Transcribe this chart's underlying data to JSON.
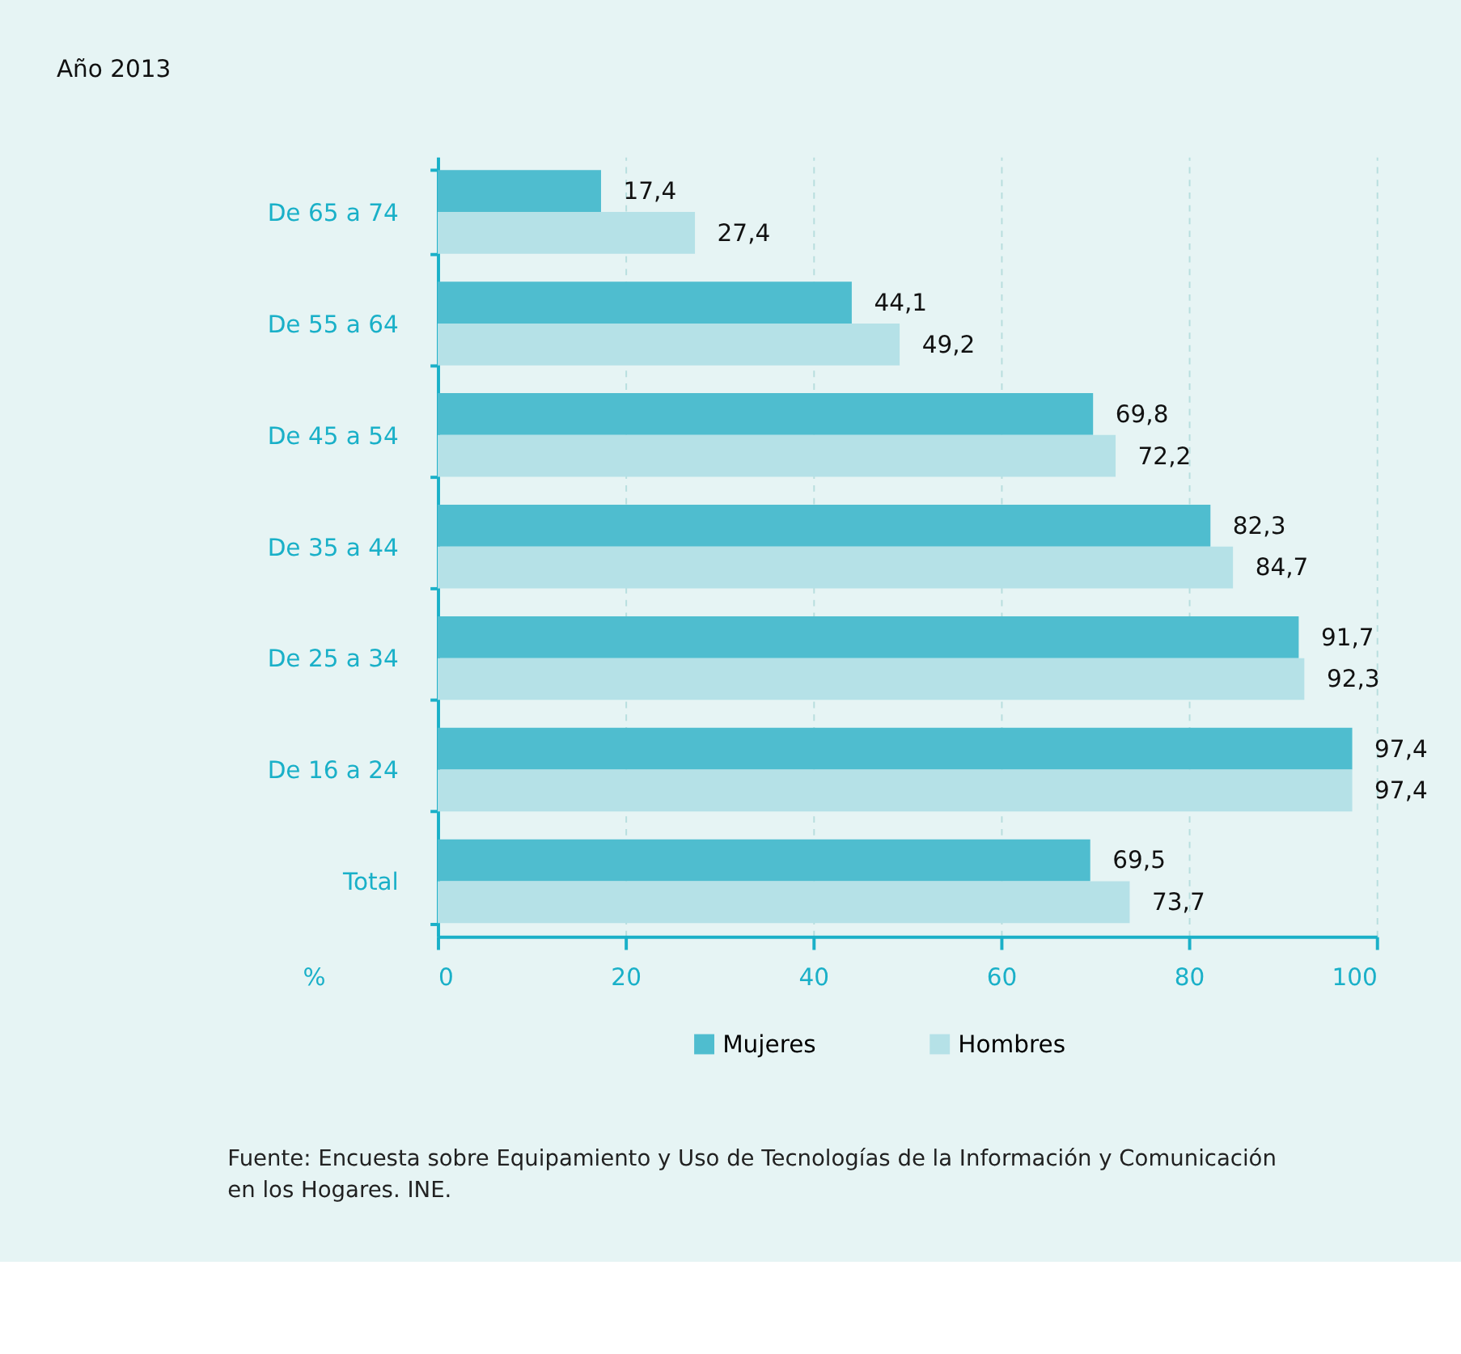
{
  "chart_data": {
    "type": "bar",
    "orientation": "horizontal",
    "title": "Año 2013",
    "xlabel": "%",
    "categories": [
      "De 65 a 74",
      "De 55 a 64",
      "De 45 a 54",
      "De 35 a 44",
      "De 25 a 34",
      "De 16 a 24",
      "Total"
    ],
    "series": [
      {
        "name": "Mujeres",
        "color": "#4fbdcf",
        "values": [
          17.4,
          44.1,
          69.8,
          82.3,
          91.7,
          97.4,
          69.5
        ],
        "value_labels": [
          "17,4",
          "44,1",
          "69,8",
          "82,3",
          "91,7",
          "97,4",
          "69,5"
        ]
      },
      {
        "name": "Hombres",
        "color": "#b5e1e7",
        "values": [
          27.4,
          49.2,
          72.2,
          84.7,
          92.3,
          97.4,
          73.7
        ],
        "value_labels": [
          "27,4",
          "49,2",
          "72,2",
          "84,7",
          "92,3",
          "97,4",
          "73,7"
        ]
      }
    ],
    "xlim": [
      0,
      100
    ],
    "xticks": [
      0,
      20,
      40,
      60,
      80,
      100
    ],
    "grid": "x",
    "legend": "bottom",
    "annotations": [
      "Fuente: Encuesta sobre Equipamiento y Uso de Tecnologías de la Información y Comunicación en los Hogares. INE."
    ]
  }
}
